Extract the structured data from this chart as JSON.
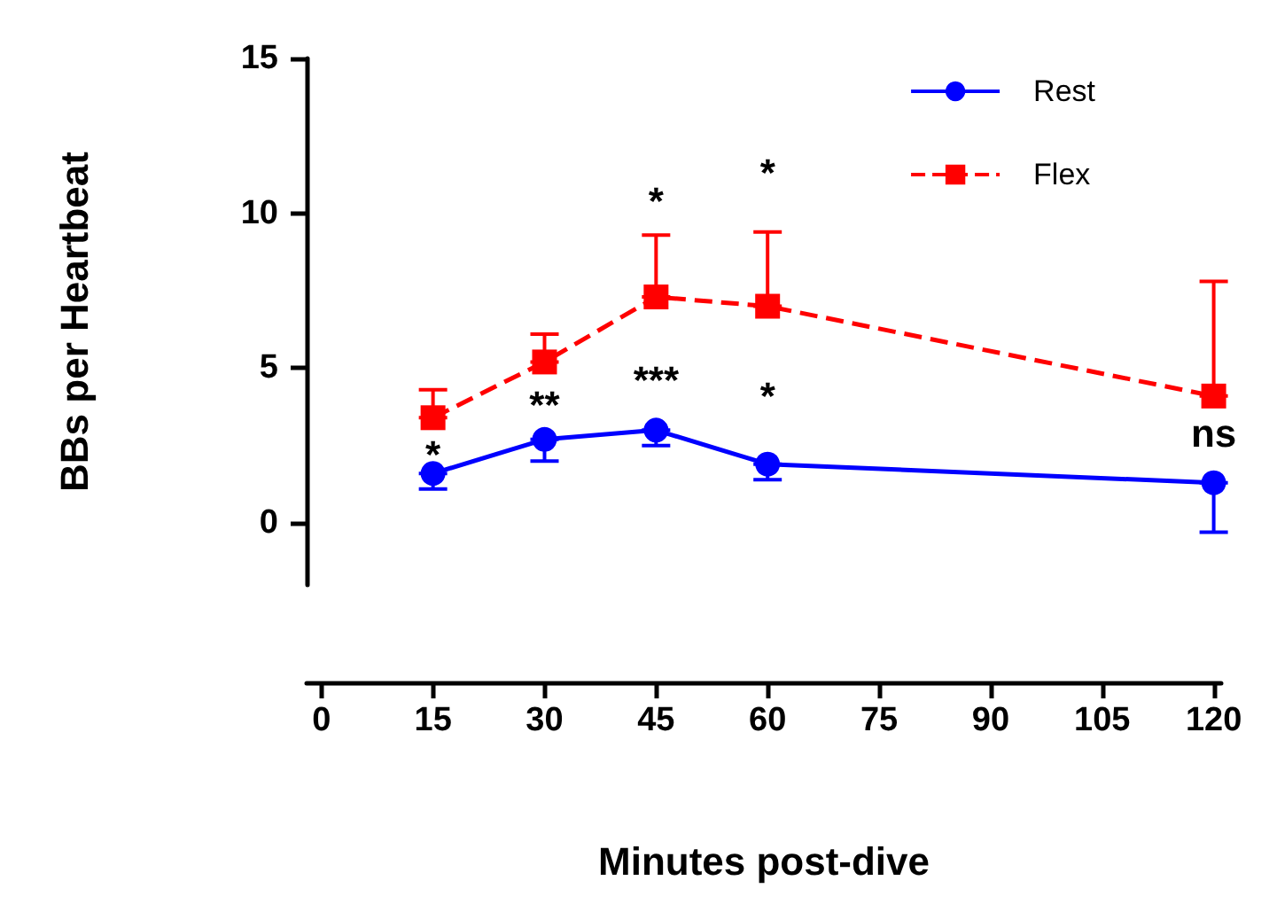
{
  "chart_data": {
    "type": "line",
    "xlabel": "Minutes post-dive",
    "ylabel": "BBs per Heartbeat",
    "x": [
      15,
      30,
      45,
      60,
      120
    ],
    "series": [
      {
        "name": "Rest",
        "color": "#0000ff",
        "values": [
          1.6,
          2.7,
          3.0,
          1.9,
          1.3
        ],
        "errors": [
          [
            1.1,
            1.6
          ],
          [
            2.0,
            2.7
          ],
          [
            2.5,
            3.0
          ],
          [
            1.4,
            1.9
          ],
          [
            -0.3,
            1.3
          ]
        ],
        "marker": "circle",
        "line_style": "solid"
      },
      {
        "name": "Flex",
        "color": "#ff0000",
        "values": [
          3.4,
          5.2,
          7.3,
          7.0,
          4.1
        ],
        "errors": [
          [
            3.4,
            4.3
          ],
          [
            5.2,
            6.1
          ],
          [
            7.3,
            9.3
          ],
          [
            7.0,
            9.4
          ],
          [
            4.1,
            7.8
          ]
        ],
        "marker": "square",
        "line_style": "dashed"
      }
    ],
    "xlim": [
      -2,
      121
    ],
    "xticks": [
      0,
      15,
      30,
      45,
      60,
      75,
      90,
      105,
      120
    ],
    "ylim": [
      -2,
      15
    ],
    "yticks": [
      0,
      5,
      10,
      15
    ],
    "grid": false,
    "legend": "top right",
    "annotations": [
      "*",
      "**",
      "***",
      "*",
      "ns",
      "*",
      "*"
    ]
  }
}
